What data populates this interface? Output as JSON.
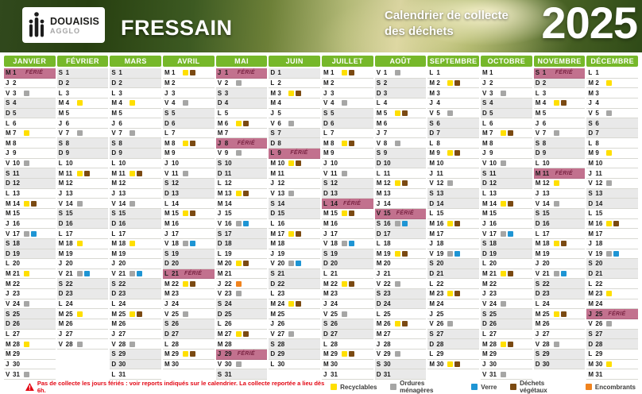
{
  "header": {
    "logo": {
      "name": "DOUAISIS",
      "sub": "AGGLO"
    },
    "commune": "FRESSAIN",
    "title_line1": "Calendrier de collecte",
    "title_line2": "des déchets",
    "year": "2025"
  },
  "ferie_label": "FÉRIÉ",
  "colors": {
    "month_header_green": "#76B82A",
    "ferie_row": "#C2718E",
    "ferie_text": "#7B2544",
    "weekend_row": "#E9E9E9",
    "warning_red": "#E30613"
  },
  "waste_types": [
    {
      "key": "y",
      "label": "Recyclables",
      "color": "#FFDF00"
    },
    {
      "key": "g",
      "label": "Ordures ménagères",
      "color": "#A6A6A5"
    },
    {
      "key": "b",
      "label": "Verre",
      "color": "#1E95D4"
    },
    {
      "key": "v",
      "label": "Déchets végétaux",
      "color": "#7B4A12"
    },
    {
      "key": "e",
      "label": "Encombrants",
      "color": "#F0831E"
    }
  ],
  "footer": {
    "warning": "Pas de collecte les jours fériés : voir reports indiqués sur le calendrier. La collecte reportée a lieu dès 6h."
  },
  "months": [
    {
      "name": "JANVIER",
      "days": [
        "M||F",
        "J||",
        "V|g|",
        "S||",
        "D||",
        "L||",
        "M|y|",
        "M||",
        "J||",
        "V|g|",
        "S||",
        "D||",
        "L||",
        "M|yv|",
        "M||",
        "J||",
        "V|gb|",
        "S||",
        "D||",
        "L||",
        "M|y|",
        "M||",
        "J||",
        "V|g|",
        "S||",
        "D||",
        "L||",
        "M|y|",
        "M||",
        "J||",
        "V|g|"
      ]
    },
    {
      "name": "FÉVRIER",
      "days": [
        "S||",
        "D||",
        "L||",
        "M|y|",
        "M||",
        "J||",
        "V|g|",
        "S||",
        "D||",
        "L||",
        "M|yv|",
        "M||",
        "J||",
        "V|g|",
        "S||",
        "D||",
        "L||",
        "M|y|",
        "M||",
        "J||",
        "V|gb|",
        "S||",
        "D||",
        "L||",
        "M|y|",
        "M||",
        "J||",
        "V|g|"
      ]
    },
    {
      "name": "MARS",
      "days": [
        "S||",
        "D||",
        "L||",
        "M|y|",
        "M||",
        "J||",
        "V|g|",
        "S||",
        "D||",
        "L||",
        "M|yv|",
        "M||",
        "J||",
        "V|g|",
        "S||",
        "D||",
        "L||",
        "M|y|",
        "M||",
        "J||",
        "V|gb|",
        "S||",
        "D||",
        "L||",
        "M|yv|",
        "M||",
        "J||",
        "V|g|",
        "S||",
        "D||",
        "L||"
      ]
    },
    {
      "name": "AVRIL",
      "days": [
        "M|yv|",
        "M||",
        "J||",
        "V|g|",
        "S||",
        "D||",
        "L||",
        "M|yv|",
        "M||",
        "J||",
        "V|g|",
        "S||",
        "D||",
        "L||",
        "M|yv|",
        "M||",
        "J||",
        "V|gb|",
        "S||",
        "D||",
        "L||F",
        "M|yv|",
        "M||",
        "J||",
        "V|g|",
        "S||",
        "D||",
        "L||",
        "M|yv|",
        "M||"
      ]
    },
    {
      "name": "MAI",
      "days": [
        "J||F",
        "V|g|",
        "S||",
        "D||",
        "L||",
        "M|yv|",
        "M||",
        "J||F",
        "V|g|",
        "S||",
        "D||",
        "L||",
        "M|yv|",
        "M||",
        "J||",
        "V|gb|",
        "S||",
        "D||",
        "L||",
        "M|yv|",
        "M||",
        "J|e|",
        "V|g|",
        "S||",
        "D||",
        "L||",
        "M|yv|",
        "M||",
        "J||F",
        "V|g|",
        "S||"
      ]
    },
    {
      "name": "JUIN",
      "days": [
        "D||",
        "L||",
        "M|yv|",
        "M||",
        "J||",
        "V|g|",
        "S||",
        "D||",
        "L||F",
        "M|yv|",
        "M||",
        "J||",
        "V|g|",
        "S||",
        "D||",
        "L||",
        "M|yv|",
        "M||",
        "J||",
        "V|gb|",
        "S||",
        "D||",
        "L||",
        "M|yv|",
        "M||",
        "J||",
        "V|g|",
        "S||",
        "D||",
        "L||"
      ]
    },
    {
      "name": "JUILLET",
      "days": [
        "M|yv|",
        "M||",
        "J||",
        "V|g|",
        "S||",
        "D||",
        "L||",
        "M|yv|",
        "M||",
        "J||",
        "V|g|",
        "S||",
        "D||",
        "L||F",
        "M|yv|",
        "M||",
        "J||",
        "V|gb|",
        "S||",
        "D||",
        "L||",
        "M|yv|",
        "M||",
        "J||",
        "V|g|",
        "S||",
        "D||",
        "L||",
        "M|yv|",
        "M||",
        "J||"
      ]
    },
    {
      "name": "AOÛT",
      "days": [
        "V|g|",
        "S||",
        "D||",
        "L||",
        "M|yv|",
        "M||",
        "J||",
        "V|g|",
        "S||",
        "D||",
        "L||",
        "M|yv|",
        "M||",
        "J||",
        "V||F",
        "S|gb|",
        "D||",
        "L||",
        "M|yv|",
        "M||",
        "J||",
        "V|g|",
        "S||",
        "D||",
        "L||",
        "M|yv|",
        "M||",
        "J||",
        "V|g|",
        "S||",
        "D||"
      ]
    },
    {
      "name": "SEPTEMBRE",
      "days": [
        "L||",
        "M|yv|",
        "M||",
        "J||",
        "V|g|",
        "S||",
        "D||",
        "L||",
        "M|yv|",
        "M||",
        "J||",
        "V|g|",
        "S||",
        "D||",
        "L||",
        "M|yv|",
        "M||",
        "J||",
        "V|gb|",
        "S||",
        "D||",
        "L||",
        "M|yv|",
        "M||",
        "J||",
        "V|g|",
        "S||",
        "D||",
        "L||",
        "M|yv|"
      ]
    },
    {
      "name": "OCTOBRE",
      "days": [
        "M||",
        "J||",
        "V|g|",
        "S||",
        "D||",
        "L||",
        "M|yv|",
        "M||",
        "J||",
        "V|g|",
        "S||",
        "D||",
        "L||",
        "M|yv|",
        "M||",
        "J||",
        "V|gb|",
        "S||",
        "D||",
        "L||",
        "M|yv|",
        "M||",
        "J||",
        "V|g|",
        "S||",
        "D||",
        "L||",
        "M|yv|",
        "M||",
        "J||",
        "V|g|"
      ]
    },
    {
      "name": "NOVEMBRE",
      "days": [
        "S||F",
        "D||",
        "L||",
        "M|yv|",
        "M||",
        "J||",
        "V|g|",
        "S||",
        "D||",
        "L||",
        "M||F",
        "M|y|",
        "J||",
        "V|g|",
        "S||",
        "D||",
        "L||",
        "M|yv|",
        "M||",
        "J||",
        "V|gb|",
        "S||",
        "D||",
        "L||",
        "M|yv|",
        "M||",
        "J||",
        "V|g|",
        "S||",
        "D||"
      ]
    },
    {
      "name": "DÉCEMBRE",
      "days": [
        "L||",
        "M|y|",
        "M||",
        "J||",
        "V|g|",
        "S||",
        "D||",
        "L||",
        "M|y|",
        "M||",
        "J||",
        "V|g|",
        "S||",
        "D||",
        "L||",
        "M|yv|",
        "M||",
        "J||",
        "V|gb|",
        "S||",
        "D||",
        "L||",
        "M|y|",
        "M||",
        "J||F",
        "V|g|",
        "S||",
        "D||",
        "L||",
        "M|y|",
        "M||"
      ]
    }
  ]
}
